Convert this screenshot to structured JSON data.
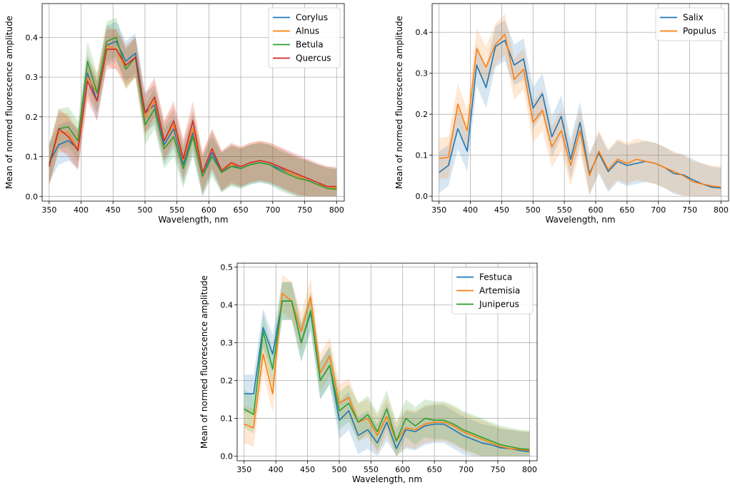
{
  "chart_data": [
    {
      "type": "line",
      "xlabel": "Wavelength, nm",
      "ylabel": "Mean of normed fluorescence amplitude",
      "xlim": [
        339,
        812
      ],
      "ylim": [
        -0.012,
        0.485
      ],
      "xticks": [
        350,
        400,
        450,
        500,
        550,
        600,
        650,
        700,
        750,
        800
      ],
      "yticks": [
        0.0,
        0.1,
        0.2,
        0.3,
        0.4
      ],
      "grid": true,
      "legend_position": "top-right",
      "x": [
        350,
        365,
        380,
        395,
        410,
        425,
        440,
        455,
        470,
        485,
        500,
        515,
        530,
        545,
        560,
        575,
        590,
        605,
        620,
        635,
        650,
        665,
        680,
        695,
        710,
        725,
        740,
        755,
        770,
        785,
        800
      ],
      "series": [
        {
          "name": "Corylus",
          "color": "#1f77b4",
          "band": 0.05,
          "values": [
            0.085,
            0.13,
            0.14,
            0.12,
            0.31,
            0.24,
            0.38,
            0.39,
            0.34,
            0.36,
            0.21,
            0.23,
            0.13,
            0.17,
            0.08,
            0.16,
            0.05,
            0.11,
            0.06,
            0.08,
            0.07,
            0.08,
            0.085,
            0.08,
            0.07,
            0.06,
            0.05,
            0.04,
            0.03,
            0.025,
            0.02
          ]
        },
        {
          "name": "Alnus",
          "color": "#ff7f0e",
          "band": 0.05,
          "values": [
            0.08,
            0.16,
            0.16,
            0.12,
            0.3,
            0.26,
            0.38,
            0.37,
            0.32,
            0.35,
            0.2,
            0.24,
            0.14,
            0.18,
            0.09,
            0.17,
            0.06,
            0.12,
            0.065,
            0.08,
            0.075,
            0.085,
            0.09,
            0.085,
            0.075,
            0.06,
            0.05,
            0.04,
            0.03,
            0.025,
            0.02
          ]
        },
        {
          "name": "Betula",
          "color": "#2ca02c",
          "band": 0.05,
          "values": [
            0.08,
            0.17,
            0.175,
            0.14,
            0.34,
            0.26,
            0.39,
            0.4,
            0.32,
            0.35,
            0.18,
            0.22,
            0.12,
            0.15,
            0.07,
            0.15,
            0.05,
            0.1,
            0.06,
            0.075,
            0.07,
            0.08,
            0.085,
            0.08,
            0.065,
            0.055,
            0.045,
            0.04,
            0.03,
            0.02,
            0.018
          ]
        },
        {
          "name": "Quercus",
          "color": "#d62728",
          "band": 0.05,
          "values": [
            0.075,
            0.17,
            0.15,
            0.115,
            0.29,
            0.24,
            0.37,
            0.37,
            0.33,
            0.35,
            0.21,
            0.25,
            0.14,
            0.19,
            0.095,
            0.19,
            0.06,
            0.12,
            0.065,
            0.085,
            0.075,
            0.085,
            0.09,
            0.085,
            0.075,
            0.065,
            0.055,
            0.045,
            0.035,
            0.025,
            0.025
          ]
        }
      ]
    },
    {
      "type": "line",
      "xlabel": "Wavelength, nm",
      "ylabel": "Mean of normed fluorescence amplitude",
      "xlim": [
        339,
        812
      ],
      "ylim": [
        -0.012,
        0.47
      ],
      "xticks": [
        350,
        400,
        450,
        500,
        550,
        600,
        650,
        700,
        750,
        800
      ],
      "yticks": [
        0.0,
        0.1,
        0.2,
        0.3,
        0.4
      ],
      "grid": true,
      "legend_position": "top-right",
      "x": [
        350,
        365,
        380,
        395,
        410,
        425,
        440,
        455,
        470,
        485,
        500,
        515,
        530,
        545,
        560,
        575,
        590,
        605,
        620,
        635,
        650,
        665,
        680,
        695,
        710,
        725,
        740,
        755,
        770,
        785,
        800
      ],
      "series": [
        {
          "name": "Salix",
          "color": "#1f77b4",
          "band": 0.05,
          "values": [
            0.058,
            0.075,
            0.165,
            0.11,
            0.32,
            0.265,
            0.365,
            0.38,
            0.32,
            0.335,
            0.215,
            0.25,
            0.145,
            0.195,
            0.09,
            0.18,
            0.055,
            0.105,
            0.06,
            0.085,
            0.075,
            0.08,
            0.085,
            0.08,
            0.07,
            0.055,
            0.052,
            0.04,
            0.03,
            0.022,
            0.02
          ]
        },
        {
          "name": "Populus",
          "color": "#ff7f0e",
          "band": 0.05,
          "values": [
            0.092,
            0.095,
            0.225,
            0.16,
            0.36,
            0.315,
            0.37,
            0.395,
            0.285,
            0.31,
            0.18,
            0.21,
            0.12,
            0.16,
            0.075,
            0.16,
            0.05,
            0.11,
            0.065,
            0.09,
            0.08,
            0.09,
            0.085,
            0.08,
            0.07,
            0.06,
            0.05,
            0.035,
            0.03,
            0.025,
            0.022
          ]
        }
      ]
    },
    {
      "type": "line",
      "xlabel": "Wavelength, nm",
      "ylabel": "Mean of normed fluorescence amplitude",
      "xlim": [
        339,
        812
      ],
      "ylim": [
        -0.012,
        0.51
      ],
      "xticks": [
        350,
        400,
        450,
        500,
        550,
        600,
        650,
        700,
        750,
        800
      ],
      "yticks": [
        0.0,
        0.1,
        0.2,
        0.3,
        0.4,
        0.5
      ],
      "grid": true,
      "legend_position": "top-right",
      "x": [
        350,
        365,
        380,
        395,
        410,
        425,
        440,
        455,
        470,
        485,
        500,
        515,
        530,
        545,
        560,
        575,
        590,
        605,
        620,
        635,
        650,
        665,
        680,
        695,
        710,
        725,
        740,
        755,
        770,
        785,
        800
      ],
      "series": [
        {
          "name": "Festuca",
          "color": "#1f77b4",
          "band": 0.05,
          "values": [
            0.165,
            0.165,
            0.34,
            0.27,
            0.41,
            0.41,
            0.3,
            0.38,
            0.2,
            0.24,
            0.095,
            0.12,
            0.055,
            0.07,
            0.035,
            0.09,
            0.02,
            0.07,
            0.065,
            0.08,
            0.085,
            0.085,
            0.07,
            0.055,
            0.045,
            0.035,
            0.03,
            0.022,
            0.02,
            0.015,
            0.012
          ]
        },
        {
          "name": "Artemisia",
          "color": "#ff7f0e",
          "band": 0.05,
          "values": [
            0.085,
            0.075,
            0.27,
            0.165,
            0.43,
            0.41,
            0.33,
            0.42,
            0.22,
            0.265,
            0.14,
            0.155,
            0.09,
            0.1,
            0.055,
            0.105,
            0.04,
            0.075,
            0.07,
            0.085,
            0.09,
            0.09,
            0.08,
            0.065,
            0.055,
            0.045,
            0.035,
            0.025,
            0.02,
            0.018,
            0.015
          ]
        },
        {
          "name": "Juniperus",
          "color": "#2ca02c",
          "band": 0.05,
          "values": [
            0.125,
            0.11,
            0.33,
            0.23,
            0.41,
            0.41,
            0.3,
            0.385,
            0.2,
            0.24,
            0.12,
            0.14,
            0.09,
            0.11,
            0.065,
            0.125,
            0.04,
            0.1,
            0.08,
            0.1,
            0.095,
            0.095,
            0.085,
            0.07,
            0.06,
            0.05,
            0.04,
            0.03,
            0.025,
            0.02,
            0.018
          ]
        }
      ]
    }
  ]
}
